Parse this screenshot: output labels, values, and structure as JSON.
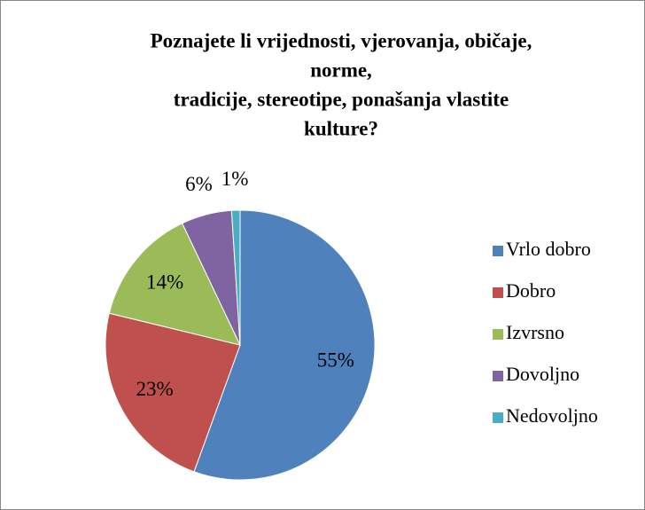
{
  "chart_data": {
    "type": "pie",
    "title": [
      "Poznajete li vrijednosti, vjerovanja, običaje,",
      "norme,",
      "tradicije, stereotipe, ponašanja vlastite",
      "kulture?"
    ],
    "categories": [
      "Vrlo dobro",
      "Dobro",
      "Izvrsno",
      "Dovoljno",
      "Nedovoljno"
    ],
    "values": [
      55,
      23,
      14,
      6,
      1
    ],
    "value_labels": [
      "55%",
      "23%",
      "14%",
      "6%",
      "1%"
    ],
    "colors": [
      "#4f81bd",
      "#c0504d",
      "#9bbb59",
      "#8064a2",
      "#4bacc6"
    ],
    "legend": "right"
  }
}
